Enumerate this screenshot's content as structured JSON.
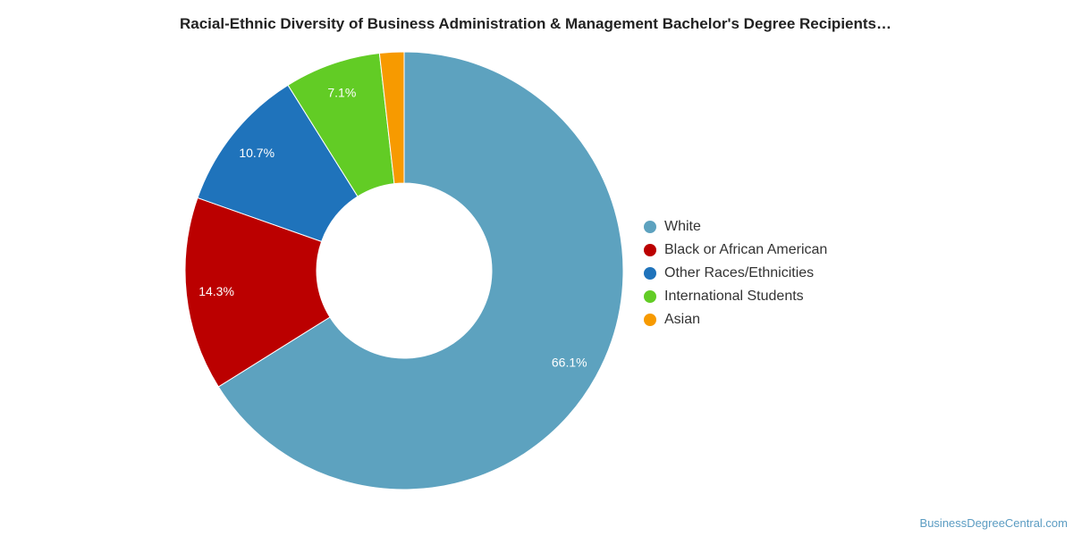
{
  "chart_data": {
    "type": "pie",
    "style": "donut",
    "title": "Racial-Ethnic Diversity of Business Administration & Management Bachelor's Degree Recipients…",
    "categories": [
      "White",
      "Black or African American",
      "Other Races/Ethnicities",
      "International Students",
      "Asian"
    ],
    "values": [
      66.1,
      14.3,
      10.7,
      7.1,
      1.8
    ],
    "value_labels": [
      "66.1%",
      "14.3%",
      "10.7%",
      "7.1%",
      ""
    ],
    "colors": [
      "#5da2bf",
      "#bb0000",
      "#1f73bb",
      "#62cc25",
      "#f79a00"
    ],
    "legend_position": "right"
  },
  "watermark": "BusinessDegreeCentral.com"
}
